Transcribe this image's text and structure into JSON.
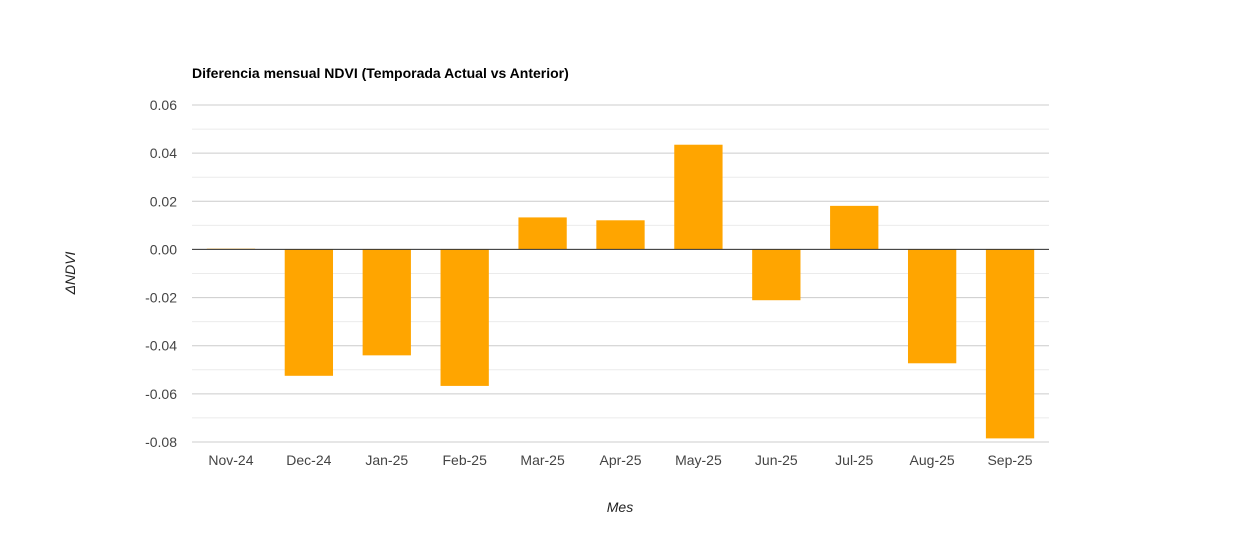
{
  "chart_data": {
    "type": "bar",
    "title": "Diferencia mensual NDVI (Temporada Actual vs Anterior)",
    "xlabel": "Mes",
    "ylabel": "ΔNDVI",
    "categories": [
      "Nov-24",
      "Dec-24",
      "Jan-25",
      "Feb-25",
      "Mar-25",
      "Apr-25",
      "May-25",
      "Jun-25",
      "Jul-25",
      "Aug-25",
      "Sep-25"
    ],
    "values": [
      0.0003,
      -0.0525,
      -0.044,
      -0.0567,
      0.0133,
      0.0121,
      0.0435,
      -0.0211,
      0.0181,
      -0.0473,
      -0.0785
    ],
    "ylim": [
      -0.08,
      0.06
    ],
    "yticks": [
      "0.06",
      "0.04",
      "0.02",
      "0.00",
      "-0.02",
      "-0.04",
      "-0.06",
      "-0.08"
    ],
    "grid": true,
    "legend": "none",
    "bar_color": "#ffa500"
  }
}
